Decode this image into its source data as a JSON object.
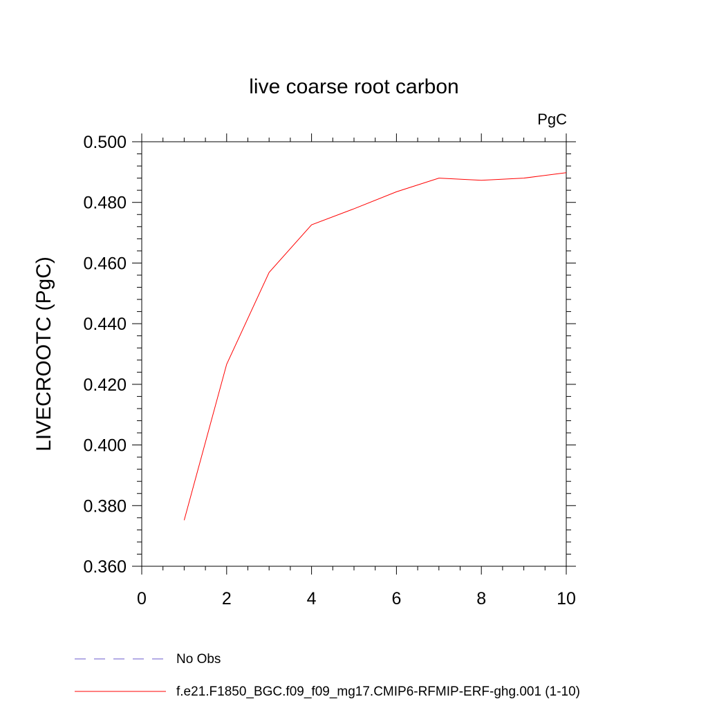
{
  "chart_data": {
    "type": "line",
    "title": "live coarse root carbon",
    "units_label": "PgC",
    "ylabel": "LIVECROOTC  (PgC)",
    "xlabel": "",
    "xlim": [
      0,
      10
    ],
    "ylim": [
      0.36,
      0.5
    ],
    "x_ticks": [
      0,
      2,
      4,
      6,
      8,
      10
    ],
    "x_tick_labels": [
      "0",
      "2",
      "4",
      "6",
      "8",
      "10"
    ],
    "y_ticks": [
      0.36,
      0.38,
      0.4,
      0.42,
      0.44,
      0.46,
      0.48,
      0.5
    ],
    "y_tick_labels": [
      "0.360",
      "0.380",
      "0.400",
      "0.420",
      "0.440",
      "0.460",
      "0.480",
      "0.500"
    ],
    "grid": false,
    "legend_position": "bottom",
    "legend": [
      {
        "label": "No Obs",
        "color": "#6a5acd",
        "dash": "dashed"
      },
      {
        "label": "f.e21.F1850_BGC.f09_f09_mg17.CMIP6-RFMIP-ERF-ghg.001 (1-10)",
        "color": "#ff0000",
        "dash": "solid"
      }
    ],
    "series": [
      {
        "name": "f.e21.F1850_BGC.f09_f09_mg17.CMIP6-RFMIP-ERF-ghg.001 (1-10)",
        "color": "#ff0000",
        "x": [
          1,
          2,
          3,
          4,
          5,
          6,
          7,
          8,
          9,
          10
        ],
        "y": [
          0.3752,
          0.4266,
          0.4569,
          0.4726,
          0.4779,
          0.4835,
          0.488,
          0.4873,
          0.488,
          0.4898
        ]
      }
    ]
  }
}
